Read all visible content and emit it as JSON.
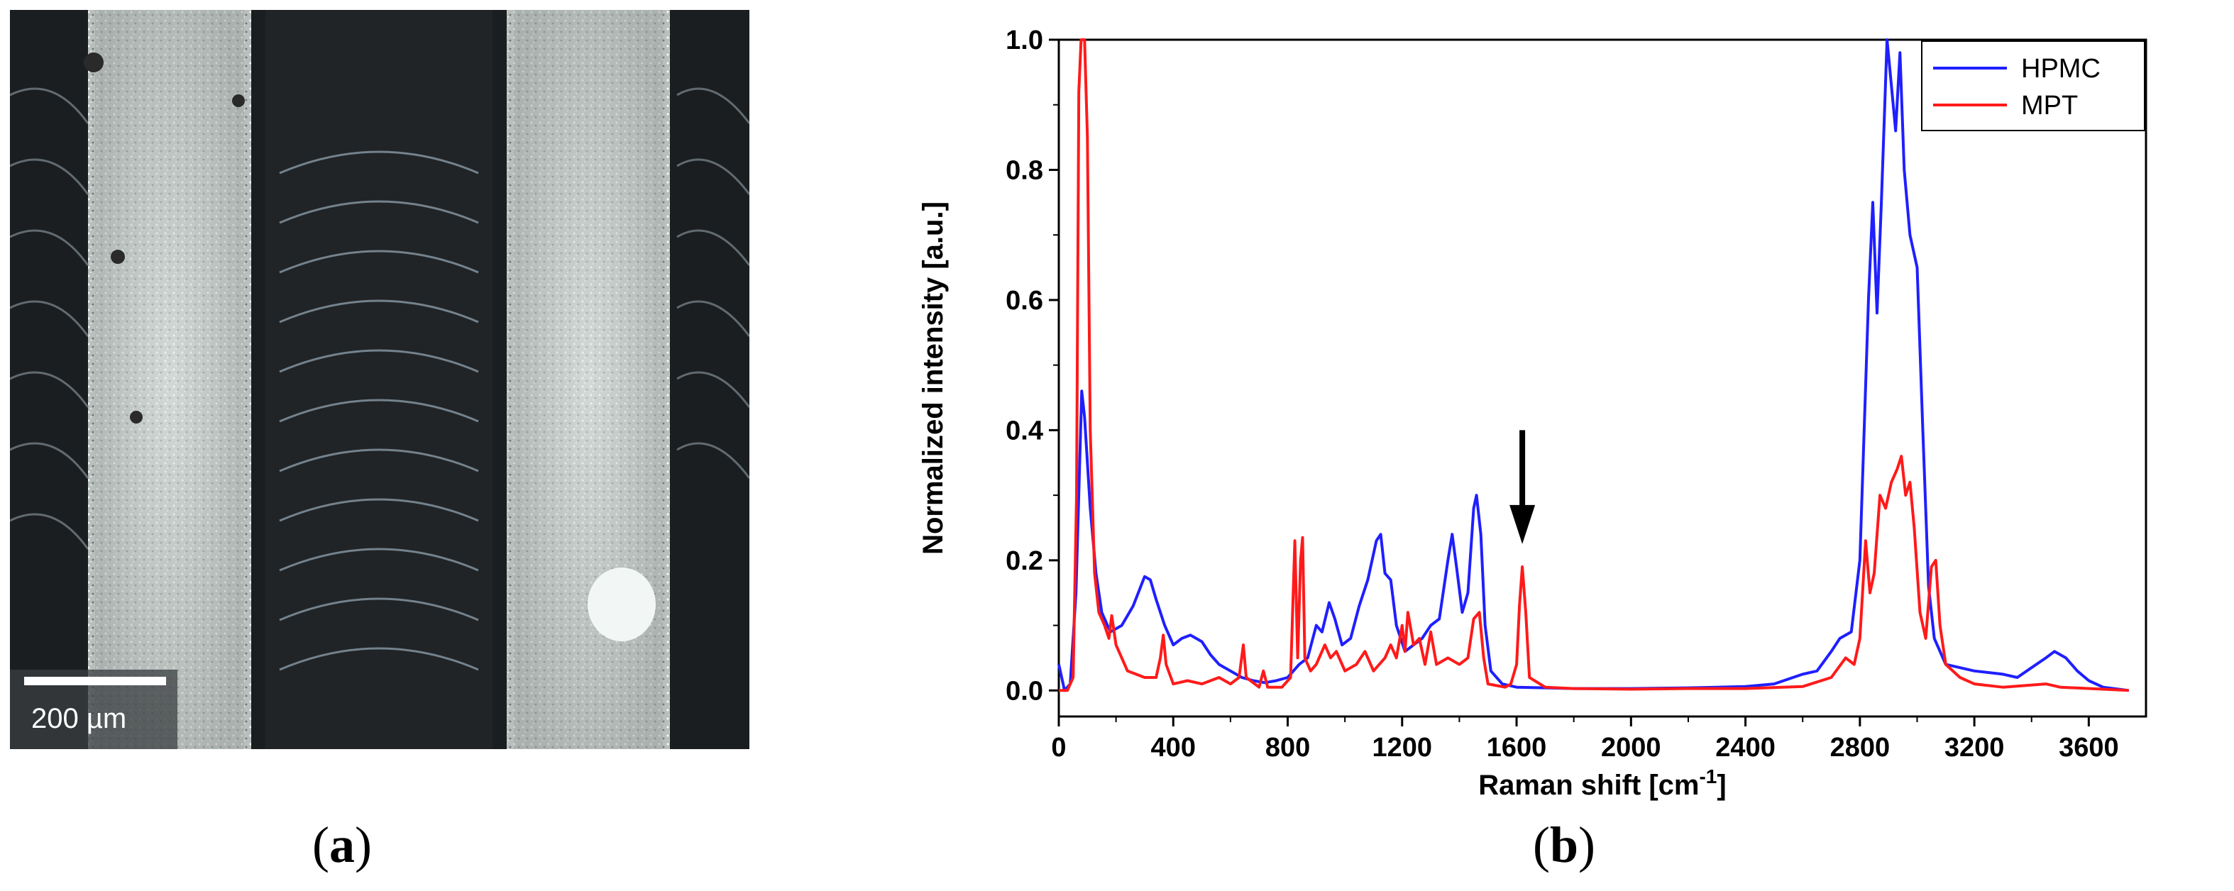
{
  "figure": {
    "panel_a_label": "a",
    "panel_b_label": "b",
    "scale_bar_text": "200 µm",
    "arrow_position_text": ""
  },
  "colors": {
    "hpmc": "#1f1fff",
    "mpt": "#ff1a1a",
    "axis": "#000000"
  },
  "chart_data": {
    "type": "line",
    "title": "",
    "xlabel_main": "Raman shift [cm",
    "xlabel_sup": "-1",
    "xlabel_end": "]",
    "ylabel": "Normalized intensity [a.u.]",
    "xlim": [
      0,
      3800
    ],
    "ylim": [
      -0.04,
      1.0
    ],
    "xticks": [
      0,
      400,
      800,
      1200,
      1600,
      2000,
      2400,
      2800,
      3200,
      3600
    ],
    "xtick_labels": [
      "0",
      "400",
      "800",
      "1200",
      "1600",
      "2000",
      "2400",
      "2800",
      "3200",
      "3600"
    ],
    "yticks": [
      0.0,
      0.2,
      0.4,
      0.6,
      0.8,
      1.0
    ],
    "ytick_labels": [
      "0.0",
      "0.2",
      "0.4",
      "0.6",
      "0.8",
      "1.0"
    ],
    "legend_position": "top-right",
    "arrow_x": 1620,
    "series": [
      {
        "name": "HPMC",
        "points": [
          [
            0,
            0.04
          ],
          [
            20,
            0.0
          ],
          [
            40,
            0.01
          ],
          [
            60,
            0.15
          ],
          [
            80,
            0.46
          ],
          [
            90,
            0.42
          ],
          [
            110,
            0.28
          ],
          [
            130,
            0.18
          ],
          [
            150,
            0.12
          ],
          [
            180,
            0.09
          ],
          [
            220,
            0.1
          ],
          [
            260,
            0.13
          ],
          [
            300,
            0.175
          ],
          [
            320,
            0.17
          ],
          [
            340,
            0.14
          ],
          [
            370,
            0.1
          ],
          [
            400,
            0.07
          ],
          [
            430,
            0.08
          ],
          [
            460,
            0.085
          ],
          [
            500,
            0.075
          ],
          [
            530,
            0.055
          ],
          [
            560,
            0.04
          ],
          [
            600,
            0.03
          ],
          [
            640,
            0.02
          ],
          [
            680,
            0.015
          ],
          [
            720,
            0.012
          ],
          [
            760,
            0.015
          ],
          [
            800,
            0.02
          ],
          [
            840,
            0.04
          ],
          [
            870,
            0.05
          ],
          [
            900,
            0.1
          ],
          [
            920,
            0.09
          ],
          [
            945,
            0.135
          ],
          [
            965,
            0.11
          ],
          [
            990,
            0.07
          ],
          [
            1020,
            0.08
          ],
          [
            1050,
            0.13
          ],
          [
            1080,
            0.17
          ],
          [
            1110,
            0.23
          ],
          [
            1125,
            0.24
          ],
          [
            1140,
            0.18
          ],
          [
            1160,
            0.17
          ],
          [
            1180,
            0.1
          ],
          [
            1210,
            0.06
          ],
          [
            1240,
            0.07
          ],
          [
            1270,
            0.08
          ],
          [
            1300,
            0.1
          ],
          [
            1330,
            0.11
          ],
          [
            1360,
            0.2
          ],
          [
            1375,
            0.24
          ],
          [
            1390,
            0.19
          ],
          [
            1410,
            0.12
          ],
          [
            1430,
            0.15
          ],
          [
            1450,
            0.28
          ],
          [
            1460,
            0.3
          ],
          [
            1475,
            0.24
          ],
          [
            1490,
            0.1
          ],
          [
            1510,
            0.03
          ],
          [
            1550,
            0.01
          ],
          [
            1600,
            0.005
          ],
          [
            1700,
            0.004
          ],
          [
            1800,
            0.003
          ],
          [
            2000,
            0.003
          ],
          [
            2200,
            0.004
          ],
          [
            2400,
            0.006
          ],
          [
            2500,
            0.01
          ],
          [
            2600,
            0.025
          ],
          [
            2650,
            0.03
          ],
          [
            2700,
            0.06
          ],
          [
            2730,
            0.08
          ],
          [
            2770,
            0.09
          ],
          [
            2800,
            0.2
          ],
          [
            2830,
            0.6
          ],
          [
            2845,
            0.75
          ],
          [
            2860,
            0.58
          ],
          [
            2875,
            0.75
          ],
          [
            2895,
            1.0
          ],
          [
            2910,
            0.93
          ],
          [
            2925,
            0.86
          ],
          [
            2940,
            0.98
          ],
          [
            2955,
            0.8
          ],
          [
            2975,
            0.7
          ],
          [
            3000,
            0.65
          ],
          [
            3020,
            0.4
          ],
          [
            3040,
            0.16
          ],
          [
            3060,
            0.08
          ],
          [
            3100,
            0.04
          ],
          [
            3200,
            0.03
          ],
          [
            3300,
            0.025
          ],
          [
            3350,
            0.02
          ],
          [
            3400,
            0.035
          ],
          [
            3450,
            0.05
          ],
          [
            3480,
            0.06
          ],
          [
            3520,
            0.05
          ],
          [
            3560,
            0.03
          ],
          [
            3600,
            0.015
          ],
          [
            3650,
            0.005
          ],
          [
            3740,
            0.0
          ]
        ]
      },
      {
        "name": "MPT",
        "points": [
          [
            0,
            0.0
          ],
          [
            30,
            0.0
          ],
          [
            50,
            0.02
          ],
          [
            62,
            0.3
          ],
          [
            70,
            0.92
          ],
          [
            78,
            1.0
          ],
          [
            90,
            1.0
          ],
          [
            100,
            0.85
          ],
          [
            110,
            0.4
          ],
          [
            125,
            0.18
          ],
          [
            140,
            0.12
          ],
          [
            160,
            0.1
          ],
          [
            175,
            0.08
          ],
          [
            185,
            0.115
          ],
          [
            200,
            0.07
          ],
          [
            240,
            0.03
          ],
          [
            300,
            0.02
          ],
          [
            340,
            0.02
          ],
          [
            355,
            0.05
          ],
          [
            365,
            0.085
          ],
          [
            375,
            0.04
          ],
          [
            400,
            0.01
          ],
          [
            450,
            0.015
          ],
          [
            500,
            0.01
          ],
          [
            560,
            0.02
          ],
          [
            600,
            0.01
          ],
          [
            630,
            0.02
          ],
          [
            645,
            0.07
          ],
          [
            655,
            0.02
          ],
          [
            700,
            0.005
          ],
          [
            715,
            0.03
          ],
          [
            730,
            0.005
          ],
          [
            780,
            0.005
          ],
          [
            810,
            0.02
          ],
          [
            825,
            0.23
          ],
          [
            835,
            0.05
          ],
          [
            845,
            0.2
          ],
          [
            852,
            0.235
          ],
          [
            860,
            0.05
          ],
          [
            880,
            0.03
          ],
          [
            900,
            0.04
          ],
          [
            930,
            0.07
          ],
          [
            950,
            0.05
          ],
          [
            970,
            0.06
          ],
          [
            1000,
            0.03
          ],
          [
            1040,
            0.04
          ],
          [
            1070,
            0.06
          ],
          [
            1100,
            0.03
          ],
          [
            1140,
            0.05
          ],
          [
            1160,
            0.07
          ],
          [
            1180,
            0.05
          ],
          [
            1200,
            0.1
          ],
          [
            1210,
            0.06
          ],
          [
            1220,
            0.12
          ],
          [
            1240,
            0.07
          ],
          [
            1260,
            0.08
          ],
          [
            1280,
            0.04
          ],
          [
            1300,
            0.09
          ],
          [
            1320,
            0.04
          ],
          [
            1360,
            0.05
          ],
          [
            1400,
            0.04
          ],
          [
            1430,
            0.05
          ],
          [
            1450,
            0.11
          ],
          [
            1470,
            0.12
          ],
          [
            1485,
            0.05
          ],
          [
            1500,
            0.01
          ],
          [
            1560,
            0.005
          ],
          [
            1580,
            0.01
          ],
          [
            1600,
            0.04
          ],
          [
            1610,
            0.13
          ],
          [
            1620,
            0.19
          ],
          [
            1632,
            0.12
          ],
          [
            1645,
            0.02
          ],
          [
            1700,
            0.005
          ],
          [
            1800,
            0.003
          ],
          [
            2000,
            0.002
          ],
          [
            2200,
            0.003
          ],
          [
            2400,
            0.003
          ],
          [
            2600,
            0.006
          ],
          [
            2700,
            0.02
          ],
          [
            2750,
            0.05
          ],
          [
            2780,
            0.04
          ],
          [
            2800,
            0.08
          ],
          [
            2820,
            0.23
          ],
          [
            2835,
            0.15
          ],
          [
            2850,
            0.18
          ],
          [
            2870,
            0.3
          ],
          [
            2890,
            0.28
          ],
          [
            2910,
            0.32
          ],
          [
            2930,
            0.34
          ],
          [
            2945,
            0.36
          ],
          [
            2960,
            0.3
          ],
          [
            2975,
            0.32
          ],
          [
            2990,
            0.25
          ],
          [
            3010,
            0.12
          ],
          [
            3030,
            0.08
          ],
          [
            3050,
            0.19
          ],
          [
            3065,
            0.2
          ],
          [
            3080,
            0.1
          ],
          [
            3100,
            0.04
          ],
          [
            3150,
            0.02
          ],
          [
            3200,
            0.01
          ],
          [
            3300,
            0.005
          ],
          [
            3450,
            0.01
          ],
          [
            3500,
            0.005
          ],
          [
            3740,
            0.0
          ]
        ]
      }
    ]
  }
}
